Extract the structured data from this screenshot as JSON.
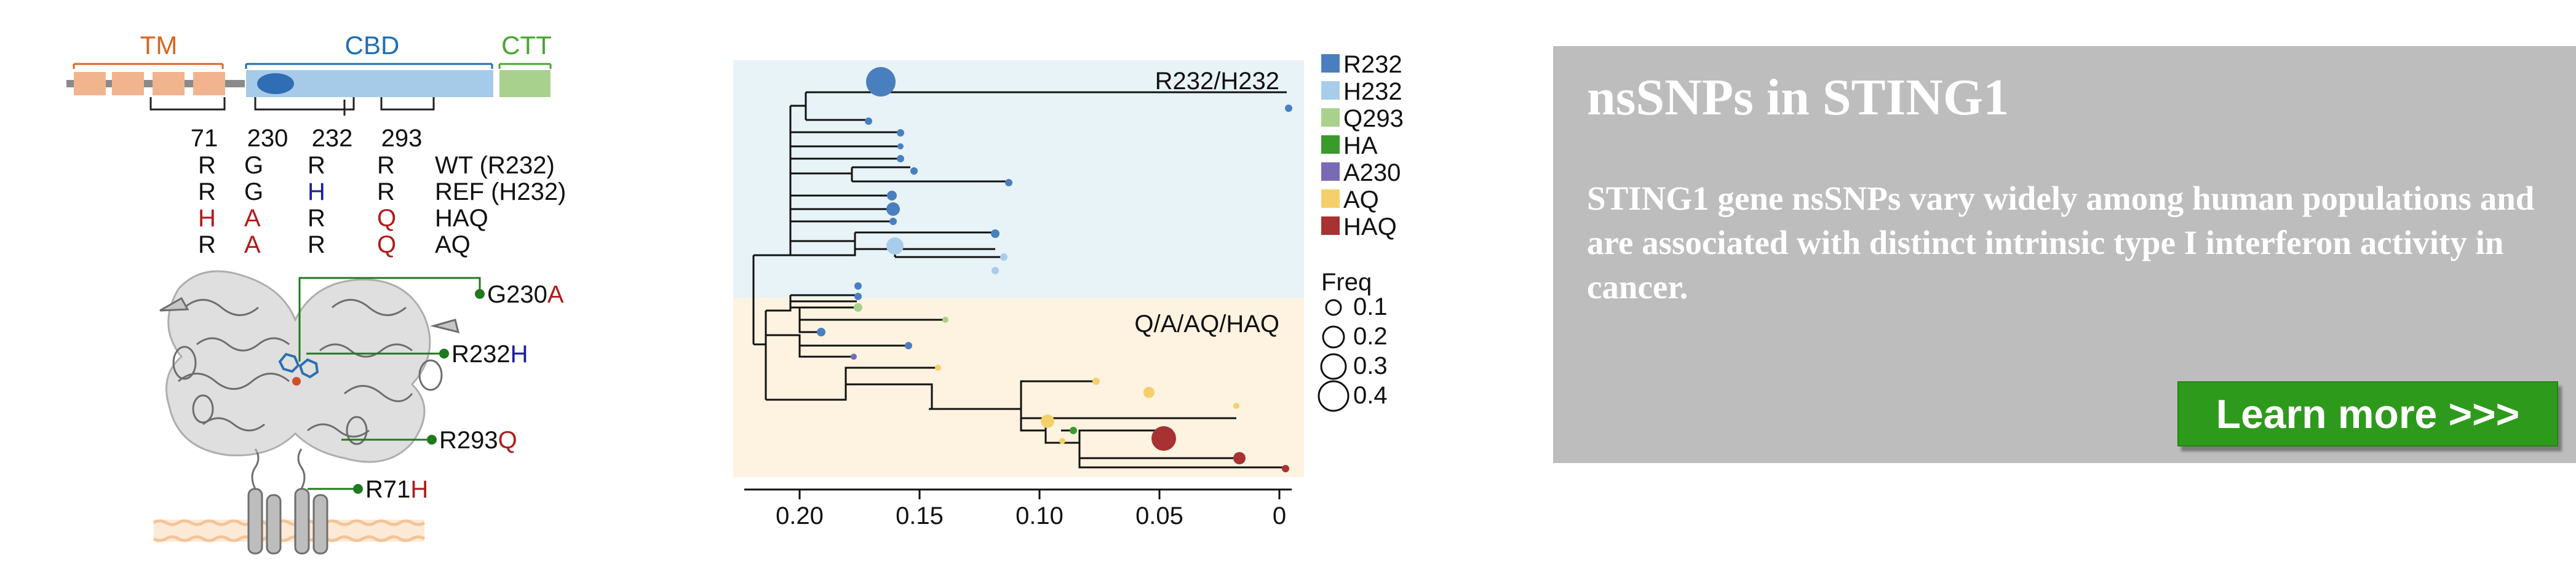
{
  "colors": {
    "domain_tm": "#d9651f",
    "domain_cbd": "#1f6cb3",
    "domain_ctt": "#4aa432",
    "variant_red": "#b01c1c",
    "variant_blue": "#1c1c9e",
    "callout_green": "#1f7a1f",
    "tree_top_bg": "#e8f3f8",
    "tree_bottom_bg": "#fdf3e0",
    "panel_bg": "#bdbdbd",
    "button_bg": "#2e9a1c"
  },
  "domains": {
    "tm": "TM",
    "cbd": "CBD",
    "ctt": "CTT"
  },
  "positions": [
    "71",
    "230",
    "232",
    "293"
  ],
  "variant_table": [
    {
      "residues": [
        "R",
        "G",
        "R",
        "R"
      ],
      "colors": [
        "black",
        "black",
        "black",
        "black"
      ],
      "label": "WT (R232)"
    },
    {
      "residues": [
        "R",
        "G",
        "H",
        "R"
      ],
      "colors": [
        "black",
        "black",
        "blue",
        "black"
      ],
      "label": "REF (H232)"
    },
    {
      "residues": [
        "H",
        "A",
        "R",
        "Q"
      ],
      "colors": [
        "red",
        "red",
        "black",
        "red"
      ],
      "label": "HAQ"
    },
    {
      "residues": [
        "R",
        "A",
        "R",
        "Q"
      ],
      "colors": [
        "black",
        "red",
        "black",
        "red"
      ],
      "label": "AQ"
    }
  ],
  "callouts": [
    {
      "prefix": "G230",
      "suffix": "A",
      "suffix_color": "red"
    },
    {
      "prefix": "R232",
      "suffix": "H",
      "suffix_color": "blue"
    },
    {
      "prefix": "R293",
      "suffix": "Q",
      "suffix_color": "red"
    },
    {
      "prefix": "R71",
      "suffix": "H",
      "suffix_color": "red"
    }
  ],
  "tree": {
    "clade_top_label": "R232/H232",
    "clade_bottom_label": "Q/A/AQ/HAQ",
    "axis_ticks": [
      "0.20",
      "0.15",
      "0.10",
      "0.05",
      "0"
    ],
    "axis_values": [
      0.2,
      0.15,
      0.1,
      0.05,
      0
    ],
    "legend_haplotypes": [
      {
        "name": "R232",
        "color": "#4a7fbf"
      },
      {
        "name": "H232",
        "color": "#a8cdea"
      },
      {
        "name": "Q293",
        "color": "#a9d18e"
      },
      {
        "name": "HA",
        "color": "#3a9a2c"
      },
      {
        "name": "A230",
        "color": "#7a6ab5"
      },
      {
        "name": "AQ",
        "color": "#f5d06a"
      },
      {
        "name": "HAQ",
        "color": "#a83232"
      }
    ],
    "freq_title": "Freq",
    "freq_values": [
      "0.1",
      "0.2",
      "0.3",
      "0.4"
    ]
  },
  "promo": {
    "title": "nsSNPs in STING1",
    "body": "STING1 gene nsSNPs vary widely among human populations and are associated with distinct intrinsic type I interferon activity in cancer.",
    "button_label": "Learn more >>>"
  }
}
